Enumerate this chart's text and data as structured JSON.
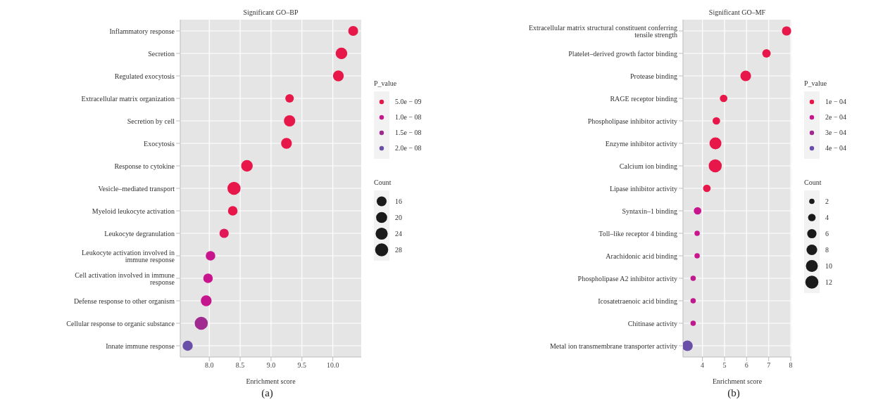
{
  "chart_data": [
    {
      "type": "bubble",
      "orientation": "horizontal",
      "title": "Significant GO–BP",
      "xlabel": "Enrichment score",
      "clabel": "P_value",
      "legend_title": "Count",
      "grid": true,
      "annotations": [
        "(a)"
      ],
      "categories": [
        "Inflammatory response",
        "Secretion",
        "Regulated exocytosis",
        "Extracellular matrix organization",
        "Secretion by cell",
        "Exocytosis",
        "Response to cytokine",
        "Vesicle–mediated transport",
        "Myeloid leukocyte activation",
        "Leukocyte degranulation",
        "Leukocyte activation involved in immune response",
        "Cell activation involved in immune response",
        "Defense response to other organism",
        "Cellular response to organic substance",
        "Innate immune response"
      ],
      "values": [
        10.33,
        10.14,
        10.09,
        9.3,
        9.3,
        9.25,
        8.61,
        8.4,
        8.38,
        8.24,
        8.02,
        7.98,
        7.95,
        7.87,
        7.65
      ],
      "sizes": [
        16,
        22,
        19,
        12,
        21,
        19,
        22,
        28,
        15,
        14,
        15,
        15,
        19,
        28,
        17
      ],
      "size_legend": [
        16,
        20,
        24,
        28
      ],
      "cvalues": [
        5e-09,
        5e-09,
        5e-09,
        5e-09,
        5e-09,
        5e-09,
        5e-09,
        5e-09,
        5e-09,
        6e-09,
        1e-08,
        1e-08,
        1.05e-08,
        1.5e-08,
        2e-08
      ],
      "clim": [
        5e-09,
        2e-08
      ],
      "cticks": [
        {
          "value": 5e-09,
          "label": "5.0e − 09"
        },
        {
          "value": 1e-08,
          "label": "1.0e − 08"
        },
        {
          "value": 1.5e-08,
          "label": "1.5e − 08"
        },
        {
          "value": 2e-08,
          "label": "2.0e − 08"
        }
      ],
      "xlim": [
        7.53,
        10.46
      ],
      "xticks": [
        {
          "value": 8,
          "label": "8.0"
        },
        {
          "value": 8.5,
          "label": "8.5"
        },
        {
          "value": 9,
          "label": "9.0"
        },
        {
          "value": 9.5,
          "label": "9.5"
        },
        {
          "value": 10,
          "label": "10.0"
        }
      ]
    },
    {
      "type": "bubble",
      "orientation": "horizontal",
      "title": "Significant GO–MF",
      "xlabel": "Enrichment score",
      "clabel": "P_value",
      "legend_title": "Count",
      "grid": true,
      "annotations": [
        "(b)"
      ],
      "categories": [
        "Extracellular matrix structural constituent conferring tensile strength",
        "Platelet–derived growth factor binding",
        "Protease binding",
        "RAGE receptor binding",
        "Phospholipase inhibitor activity",
        "Enzyme inhibitor activity",
        "Calcium ion binding",
        "Lipase inhibitor activity",
        "Syntaxin–1 binding",
        "Toll–like receptor 4 binding",
        "Arachidonic acid binding",
        "Phospholipase A2 inhibitor activity",
        "Icosatetraenoic acid binding",
        "Chitinase activity",
        "Metal ion transmembrane transporter activity"
      ],
      "values": [
        7.81,
        6.9,
        5.96,
        4.96,
        4.63,
        4.59,
        4.58,
        4.2,
        3.78,
        3.76,
        3.76,
        3.58,
        3.58,
        3.58,
        3.32
      ],
      "sizes": [
        6,
        5,
        8,
        4,
        4,
        10,
        12,
        4,
        4,
        2,
        2,
        2,
        2,
        2,
        8
      ],
      "size_legend": [
        2,
        4,
        6,
        8,
        10,
        12
      ],
      "cvalues": [
        0.0001,
        0.0001,
        0.0001,
        0.0001,
        0.0001,
        0.0001,
        0.0001,
        0.0001,
        0.0002,
        0.0002,
        0.0002,
        0.00022,
        0.00022,
        0.00022,
        0.0004
      ],
      "clim": [
        0.0001,
        0.0004
      ],
      "cticks": [
        {
          "value": 0.0001,
          "label": "1e − 04"
        },
        {
          "value": 0.0002,
          "label": "2e − 04"
        },
        {
          "value": 0.0003,
          "label": "3e − 04"
        },
        {
          "value": 0.0004,
          "label": "4e − 04"
        }
      ],
      "xlim": [
        3.12,
        8.03
      ],
      "xticks": [
        4,
        5,
        6,
        7,
        8
      ]
    }
  ]
}
